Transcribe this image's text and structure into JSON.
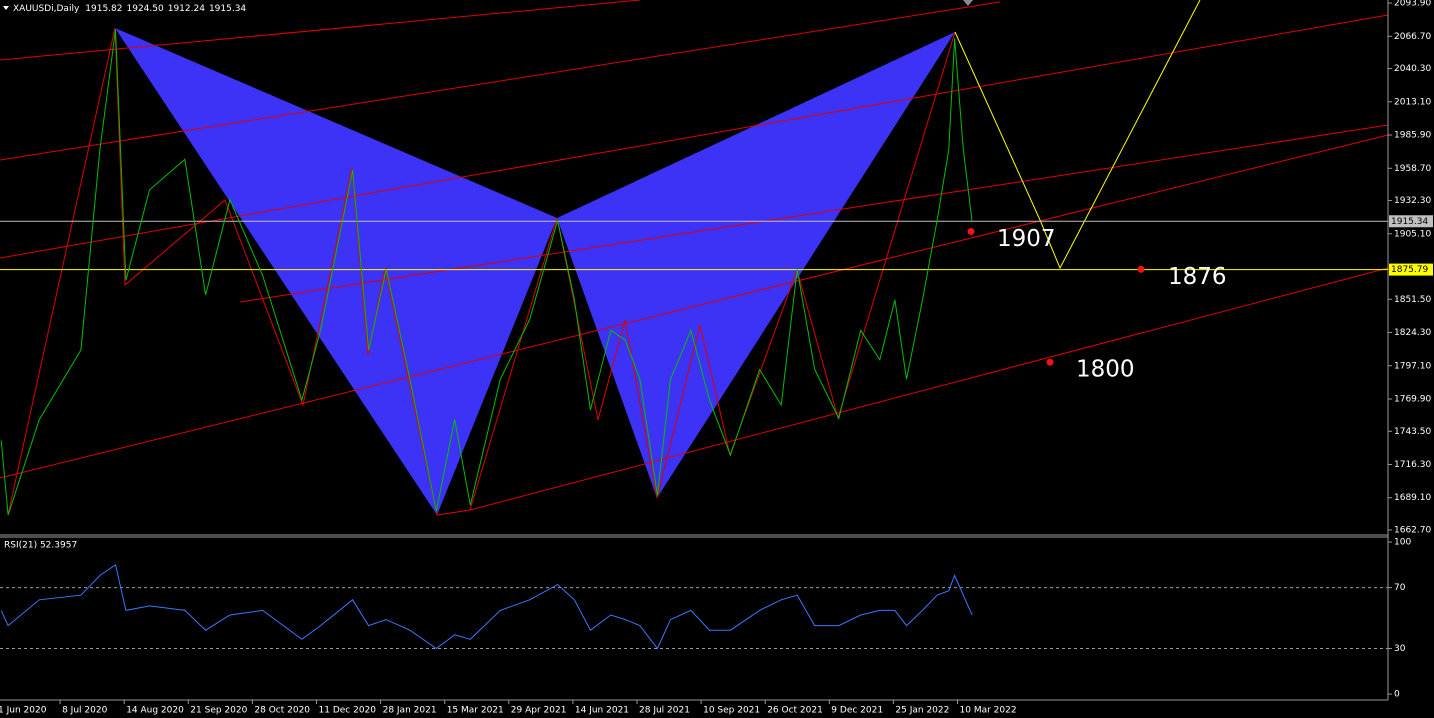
{
  "chart_data": [
    {
      "type": "line",
      "title": "XAUUSDi,Daily",
      "ohlc": [
        1915.82,
        {
          "value": 1924.5,
          "label": "1924.50"
        },
        1912.24,
        1915.34
      ],
      "color": "#00c000",
      "x": [
        "2020-06-04",
        "2020-06-08",
        "2020-06-26",
        "2020-07-20",
        "2020-07-31",
        "2020-08-09",
        "2020-08-15",
        "2020-08-29",
        "2020-09-19",
        "2020-10-01",
        "2020-10-15",
        "2020-11-04",
        "2020-12-01",
        "2020-12-14",
        "2021-01-07",
        "2021-01-19",
        "2021-02-01",
        "2021-02-18",
        "2021-03-09",
        "2021-03-22",
        "2021-04-02",
        "2021-04-23",
        "2021-05-14",
        "2021-06-03",
        "2021-06-15",
        "2021-06-26",
        "2021-07-10",
        "2021-07-20",
        "2021-07-30",
        "2021-08-11",
        "2021-08-20",
        "2021-09-03",
        "2021-09-16",
        "2021-10-01",
        "2021-10-22",
        "2021-11-06",
        "2021-11-17",
        "2021-11-29",
        "2021-12-16",
        "2022-01-01",
        "2022-01-15",
        "2022-01-26",
        "2022-02-03",
        "2022-02-14",
        "2022-02-24",
        "2022-03-04",
        "2022-03-08",
        "2022-03-14",
        "2022-03-20"
      ],
      "values": [
        1736,
        1675,
        1753,
        1810,
        1974,
        2072,
        1867,
        1941,
        1966,
        1855,
        1933,
        1871,
        1769,
        1826,
        1957,
        1810,
        1876,
        1786,
        1678,
        1753,
        1683,
        1786,
        1835,
        1916,
        1851,
        1761,
        1826,
        1818,
        1786,
        1691,
        1786,
        1826,
        1769,
        1724,
        1794,
        1765,
        1876,
        1794,
        1754,
        1826,
        1802,
        1851,
        1786,
        1851,
        1916,
        1974,
        2065,
        1974,
        1915
      ],
      "ylim": [
        1658.6,
        2096.4
      ],
      "yticks": [
        {
          "value": 2093.9,
          "label": "2093.90"
        },
        {
          "value": 2066.7,
          "label": "2066.70"
        },
        {
          "value": 2040.3,
          "label": "2040.30"
        },
        {
          "value": 2013.1,
          "label": "2013.10"
        },
        {
          "value": 1985.9,
          "label": "1985.90"
        },
        {
          "value": 1958.7,
          "label": "1958.70"
        },
        {
          "value": 1932.3,
          "label": "1932.30"
        },
        {
          "value": 1905.1,
          "label": "1905.10"
        },
        {
          "value": 1851.5,
          "label": "1851.50"
        },
        {
          "value": 1824.3,
          "label": "1824.30"
        },
        {
          "value": 1797.1,
          "label": "1797.10"
        },
        {
          "value": 1769.9,
          "label": "1769.90"
        },
        {
          "value": 1743.5,
          "label": "1743.50"
        },
        {
          "value": 1716.3,
          "label": "1716.30"
        },
        {
          "value": 1689.1,
          "label": "1689.10"
        },
        {
          "value": 1662.7,
          "label": "1662.70"
        }
      ],
      "price_lines": [
        {
          "value": 1915.34,
          "color": "#c0c0c0"
        },
        {
          "value": 1875.79,
          "color": "#ffff00"
        }
      ],
      "targets": [
        1907,
        1876,
        1800
      ]
    },
    {
      "type": "line",
      "title": "RSI(21) 52.3957",
      "color": "#3a78ff",
      "values": [
        55,
        45,
        62,
        65,
        78,
        85,
        55,
        58,
        55,
        42,
        52,
        55,
        36,
        45,
        62,
        45,
        49,
        42,
        30,
        39,
        36,
        55,
        62,
        72,
        62,
        42,
        52,
        49,
        45,
        30,
        49,
        55,
        42,
        42,
        55,
        62,
        65,
        45,
        45,
        52,
        55,
        55,
        45,
        55,
        65,
        68,
        78,
        65,
        52
      ],
      "ylim": [
        -3.9,
        103.3
      ],
      "yticks": [
        0,
        30,
        70,
        100
      ],
      "levels": [
        30,
        70
      ],
      "xticks": [
        {
          "value": "2020-06-01",
          "label": "1 Jun 2020"
        },
        {
          "value": "2020-07-08",
          "label": "8 Jul 2020"
        },
        {
          "value": "2020-08-14",
          "label": "14 Aug 2020"
        },
        {
          "value": "2020-09-21",
          "label": "21 Sep 2020"
        },
        {
          "value": "2020-10-28",
          "label": "28 Oct 2020"
        },
        {
          "value": "2020-12-11",
          "label": "11 Dec 2020"
        },
        {
          "value": "2021-01-28",
          "label": "28 Jan 2021"
        },
        {
          "value": "2021-03-15",
          "label": "15 Mar 2021"
        },
        {
          "value": "2021-04-29",
          "label": "29 Apr 2021"
        },
        {
          "value": "2021-06-14",
          "label": "14 Jun 2021"
        },
        {
          "value": "2021-07-28",
          "label": "28 Jul 2021"
        },
        {
          "value": "2021-09-10",
          "label": "10 Sep 2021"
        },
        {
          "value": "2021-10-26",
          "label": "26 Oct 2021"
        },
        {
          "value": "2021-12-09",
          "label": "9 Dec 2021"
        },
        {
          "value": "2022-01-25",
          "label": "25 Jan 2022"
        },
        {
          "value": "2022-03-10",
          "label": "10 Mar 2022"
        }
      ]
    }
  ]
}
